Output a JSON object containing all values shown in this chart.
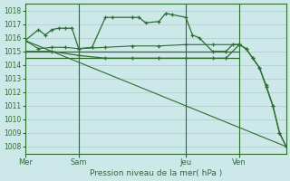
{
  "background_color": "#cce8e8",
  "grid_color": "#aacccc",
  "line_color": "#2d6e2d",
  "xlabel_text": "Pression niveau de la mer( hPa )",
  "ylim": [
    1007.5,
    1018.5
  ],
  "yticks": [
    1008,
    1009,
    1010,
    1011,
    1012,
    1013,
    1014,
    1015,
    1016,
    1017,
    1018
  ],
  "day_labels": [
    "Mer",
    "Sam",
    "Jeu",
    "Ven"
  ],
  "day_positions": [
    0,
    8,
    24,
    32
  ],
  "vline_positions": [
    8,
    24,
    32
  ],
  "xlim": [
    0,
    39
  ],
  "line_diagonal": {
    "x": [
      0,
      39
    ],
    "y": [
      1015.8,
      1008.0
    ]
  },
  "line_flat1": {
    "x": [
      0,
      32
    ],
    "y": [
      1015.0,
      1015.0
    ]
  },
  "line_flat2": {
    "x": [
      0,
      32
    ],
    "y": [
      1014.5,
      1014.5
    ]
  },
  "line_nearly_flat": {
    "x": [
      0,
      2,
      4,
      6,
      8,
      12,
      16,
      20,
      24,
      28,
      32
    ],
    "y": [
      1015.8,
      1015.2,
      1015.3,
      1015.3,
      1015.2,
      1015.3,
      1015.4,
      1015.4,
      1015.5,
      1015.5,
      1015.5
    ]
  },
  "line_wiggly": {
    "x": [
      0,
      2,
      3,
      4,
      5,
      6,
      7,
      8,
      10,
      12,
      13,
      16,
      17,
      18,
      20,
      21,
      22,
      24,
      25,
      26,
      28,
      30,
      31,
      32,
      33,
      34,
      35,
      36,
      37,
      38,
      39
    ],
    "y": [
      1015.8,
      1016.6,
      1016.2,
      1016.6,
      1016.7,
      1016.7,
      1016.7,
      1015.2,
      1015.3,
      1017.5,
      1017.5,
      1017.5,
      1017.5,
      1017.1,
      1017.2,
      1017.8,
      1017.7,
      1017.5,
      1016.2,
      1016.0,
      1015.0,
      1015.0,
      1015.5,
      1015.5,
      1015.2,
      1014.5,
      1013.8,
      1012.4,
      1011.0,
      1009.0,
      1008.0
    ]
  },
  "line_steppy": {
    "x": [
      0,
      4,
      8,
      12,
      16,
      20,
      24,
      28,
      30,
      32,
      33,
      34,
      35,
      36,
      37,
      38,
      39
    ],
    "y": [
      1015.0,
      1015.0,
      1014.7,
      1014.5,
      1014.5,
      1014.5,
      1014.5,
      1014.5,
      1014.5,
      1015.5,
      1015.2,
      1014.5,
      1013.8,
      1012.5,
      1011.0,
      1009.0,
      1008.0
    ]
  }
}
